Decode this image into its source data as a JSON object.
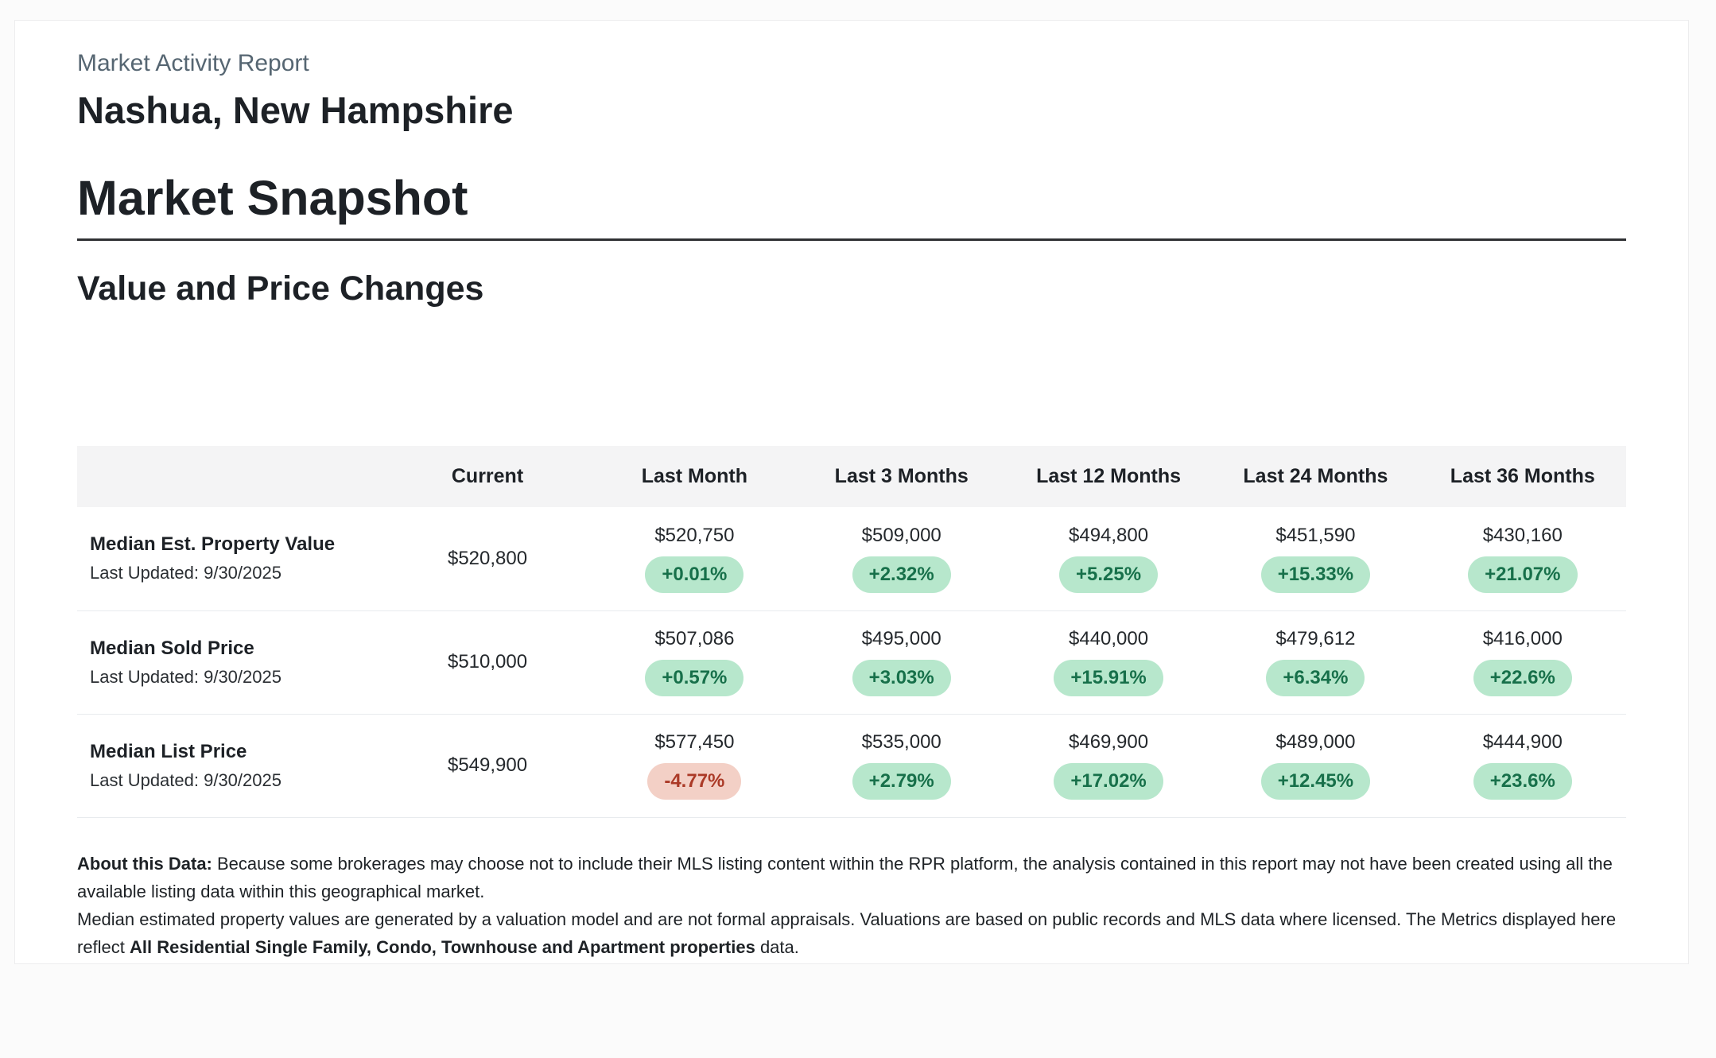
{
  "page": {
    "kicker": "Market Activity Report",
    "location": "Nashua, New Hampshire",
    "section_title": "Market Snapshot",
    "subsection_title": "Value and Price Changes"
  },
  "table": {
    "headers": {
      "metric": "",
      "current": "Current",
      "last_month": "Last Month",
      "last_3_months": "Last 3 Months",
      "last_12_months": "Last 12 Months",
      "last_24_months": "Last 24 Months",
      "last_36_months": "Last 36 Months"
    },
    "rows": [
      {
        "label": "Median Est. Property Value",
        "updated": "Last Updated: 9/30/2025",
        "current": "$520,800",
        "cells": [
          {
            "value": "$520,750",
            "change": "+0.01%",
            "direction": "up"
          },
          {
            "value": "$509,000",
            "change": "+2.32%",
            "direction": "up"
          },
          {
            "value": "$494,800",
            "change": "+5.25%",
            "direction": "up"
          },
          {
            "value": "$451,590",
            "change": "+15.33%",
            "direction": "up"
          },
          {
            "value": "$430,160",
            "change": "+21.07%",
            "direction": "up"
          }
        ]
      },
      {
        "label": "Median Sold Price",
        "updated": "Last Updated: 9/30/2025",
        "current": "$510,000",
        "cells": [
          {
            "value": "$507,086",
            "change": "+0.57%",
            "direction": "up"
          },
          {
            "value": "$495,000",
            "change": "+3.03%",
            "direction": "up"
          },
          {
            "value": "$440,000",
            "change": "+15.91%",
            "direction": "up"
          },
          {
            "value": "$479,612",
            "change": "+6.34%",
            "direction": "up"
          },
          {
            "value": "$416,000",
            "change": "+22.6%",
            "direction": "up"
          }
        ]
      },
      {
        "label": "Median List Price",
        "updated": "Last Updated: 9/30/2025",
        "current": "$549,900",
        "cells": [
          {
            "value": "$577,450",
            "change": "-4.77%",
            "direction": "down"
          },
          {
            "value": "$535,000",
            "change": "+2.79%",
            "direction": "up"
          },
          {
            "value": "$469,900",
            "change": "+17.02%",
            "direction": "up"
          },
          {
            "value": "$489,000",
            "change": "+12.45%",
            "direction": "up"
          },
          {
            "value": "$444,900",
            "change": "+23.6%",
            "direction": "up"
          }
        ]
      }
    ]
  },
  "footer": {
    "about_label": "About this Data:",
    "about_text": " Because some brokerages may choose not to include their MLS listing content within the RPR platform, the analysis contained in this report may not have been created using all the available listing data within this geographical market.",
    "methodology_text": "Median estimated property values are generated by a valuation model and are not formal appraisals. Valuations are based on public records and MLS data where licensed. The Metrics displayed here reflect ",
    "methodology_bold": "All Residential Single Family, Condo, Townhouse and Apartment properties",
    "methodology_suffix": " data."
  },
  "colors": {
    "positive_badge_bg": "#b7e7cc",
    "positive_badge_text": "#17704a",
    "negative_badge_bg": "#f3d0c6",
    "negative_badge_text": "#ab3a27",
    "kicker_text": "#566672",
    "header_row_bg": "#f4f4f5"
  }
}
